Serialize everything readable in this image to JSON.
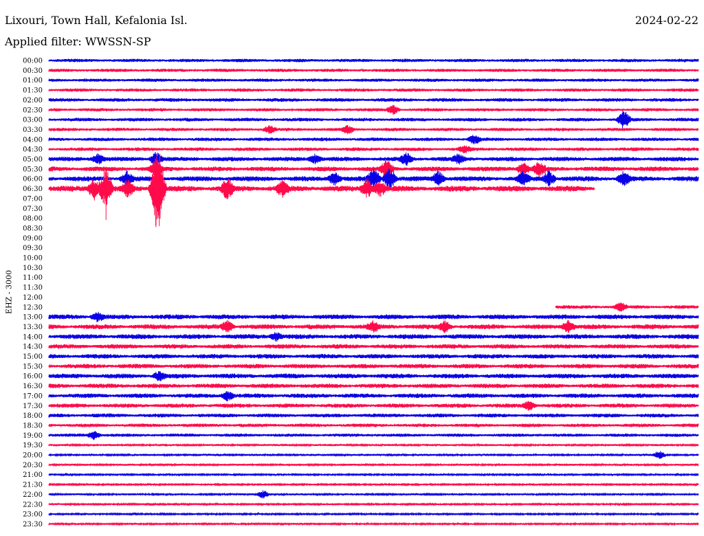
{
  "header": {
    "station": "Lixouri, Town Hall, Kefalonia Isl.",
    "date": "2024-02-22",
    "filter_label": "Applied filter: WWSSN-SP",
    "channel": "EHZ - 3000"
  },
  "colors": {
    "even_trace": "#0a00e6",
    "odd_trace": "#ff0a4a",
    "background": "#ffffff"
  },
  "chart_data": {
    "type": "line",
    "title": "Lixouri, Town Hall, Kefalonia Isl.",
    "ylabel": "EHZ - 3000",
    "tick_labels": [
      "00:00",
      "00:30",
      "01:00",
      "01:30",
      "02:00",
      "02:30",
      "03:00",
      "03:30",
      "04:00",
      "04:30",
      "05:00",
      "05:30",
      "06:00",
      "06:30",
      "07:00",
      "07:30",
      "08:00",
      "08:30",
      "09:00",
      "09:30",
      "10:00",
      "10:30",
      "11:00",
      "11:30",
      "12:00",
      "12:30",
      "13:00",
      "13:30",
      "14:00",
      "14:30",
      "15:00",
      "15:30",
      "16:00",
      "16:30",
      "17:00",
      "17:30",
      "18:00",
      "18:30",
      "19:00",
      "19:30",
      "20:00",
      "20:30",
      "21:00",
      "21:30",
      "22:00",
      "22:30",
      "23:00",
      "23:30"
    ],
    "series": [
      {
        "row": "00:00",
        "data_start": 0.0,
        "data_end": 1.0,
        "noise_level": 0.55,
        "events": []
      },
      {
        "row": "00:30",
        "data_start": 0.0,
        "data_end": 1.0,
        "noise_level": 0.55,
        "events": []
      },
      {
        "row": "01:00",
        "data_start": 0.0,
        "data_end": 1.0,
        "noise_level": 0.55,
        "events": []
      },
      {
        "row": "01:30",
        "data_start": 0.0,
        "data_end": 1.0,
        "noise_level": 0.55,
        "events": []
      },
      {
        "row": "02:00",
        "data_start": 0.0,
        "data_end": 1.0,
        "noise_level": 0.6,
        "events": []
      },
      {
        "row": "02:30",
        "data_start": 0.0,
        "data_end": 1.0,
        "noise_level": 0.55,
        "events": [
          {
            "t": 0.53,
            "amp": 1.4
          }
        ]
      },
      {
        "row": "03:00",
        "data_start": 0.0,
        "data_end": 1.0,
        "noise_level": 0.6,
        "events": [
          {
            "t": 0.885,
            "amp": 2.6
          }
        ]
      },
      {
        "row": "03:30",
        "data_start": 0.0,
        "data_end": 1.0,
        "noise_level": 0.55,
        "events": [
          {
            "t": 0.34,
            "amp": 1.2
          },
          {
            "t": 0.46,
            "amp": 1.2
          }
        ]
      },
      {
        "row": "04:00",
        "data_start": 0.0,
        "data_end": 1.0,
        "noise_level": 0.6,
        "events": [
          {
            "t": 0.655,
            "amp": 1.4
          }
        ]
      },
      {
        "row": "04:30",
        "data_start": 0.0,
        "data_end": 1.0,
        "noise_level": 0.6,
        "events": [
          {
            "t": 0.64,
            "amp": 1.0
          }
        ]
      },
      {
        "row": "05:00",
        "data_start": 0.0,
        "data_end": 1.0,
        "noise_level": 0.75,
        "events": [
          {
            "t": 0.075,
            "amp": 1.8
          },
          {
            "t": 0.165,
            "amp": 2.2
          },
          {
            "t": 0.41,
            "amp": 1.6
          },
          {
            "t": 0.55,
            "amp": 1.6
          },
          {
            "t": 0.63,
            "amp": 1.4
          }
        ]
      },
      {
        "row": "05:30",
        "data_start": 0.0,
        "data_end": 1.0,
        "noise_level": 0.8,
        "events": [
          {
            "t": 0.165,
            "amp": 2.6
          },
          {
            "t": 0.52,
            "amp": 3.0
          },
          {
            "t": 0.73,
            "amp": 2.0
          },
          {
            "t": 0.755,
            "amp": 2.0
          }
        ]
      },
      {
        "row": "06:00",
        "data_start": 0.0,
        "data_end": 1.0,
        "noise_level": 0.85,
        "events": [
          {
            "t": 0.12,
            "amp": 2.0
          },
          {
            "t": 0.44,
            "amp": 2.0
          },
          {
            "t": 0.5,
            "amp": 3.2
          },
          {
            "t": 0.525,
            "amp": 3.4
          },
          {
            "t": 0.6,
            "amp": 2.2
          },
          {
            "t": 0.73,
            "amp": 2.0
          },
          {
            "t": 0.77,
            "amp": 2.4
          },
          {
            "t": 0.885,
            "amp": 2.0
          }
        ]
      },
      {
        "row": "06:30",
        "data_start": 0.0,
        "data_end": 0.84,
        "noise_level": 0.95,
        "events": [
          {
            "t": 0.07,
            "amp": 3.2
          },
          {
            "t": 0.088,
            "amp": 6.5
          },
          {
            "t": 0.122,
            "amp": 2.6
          },
          {
            "t": 0.165,
            "amp": 8.0
          },
          {
            "t": 0.17,
            "amp": 7.8
          },
          {
            "t": 0.275,
            "amp": 3.2
          },
          {
            "t": 0.36,
            "amp": 2.4
          },
          {
            "t": 0.49,
            "amp": 3.0
          },
          {
            "t": 0.51,
            "amp": 2.2
          }
        ]
      },
      {
        "row": "07:00",
        "data_start": null,
        "data_end": null,
        "noise_level": 0,
        "events": []
      },
      {
        "row": "07:30",
        "data_start": null,
        "data_end": null,
        "noise_level": 0,
        "events": []
      },
      {
        "row": "08:00",
        "data_start": null,
        "data_end": null,
        "noise_level": 0,
        "events": []
      },
      {
        "row": "08:30",
        "data_start": null,
        "data_end": null,
        "noise_level": 0,
        "events": []
      },
      {
        "row": "09:00",
        "data_start": null,
        "data_end": null,
        "noise_level": 0,
        "events": []
      },
      {
        "row": "09:30",
        "data_start": null,
        "data_end": null,
        "noise_level": 0,
        "events": []
      },
      {
        "row": "10:00",
        "data_start": null,
        "data_end": null,
        "noise_level": 0,
        "events": []
      },
      {
        "row": "10:30",
        "data_start": null,
        "data_end": null,
        "noise_level": 0,
        "events": []
      },
      {
        "row": "11:00",
        "data_start": null,
        "data_end": null,
        "noise_level": 0,
        "events": []
      },
      {
        "row": "11:30",
        "data_start": null,
        "data_end": null,
        "noise_level": 0,
        "events": []
      },
      {
        "row": "12:00",
        "data_start": null,
        "data_end": null,
        "noise_level": 0,
        "events": []
      },
      {
        "row": "12:30",
        "data_start": 0.78,
        "data_end": 1.0,
        "noise_level": 0.6,
        "events": [
          {
            "t": 0.88,
            "amp": 1.2
          }
        ]
      },
      {
        "row": "13:00",
        "data_start": 0.0,
        "data_end": 1.0,
        "noise_level": 0.8,
        "events": [
          {
            "t": 0.075,
            "amp": 1.4
          }
        ]
      },
      {
        "row": "13:30",
        "data_start": 0.0,
        "data_end": 1.0,
        "noise_level": 0.8,
        "events": [
          {
            "t": 0.275,
            "amp": 1.8
          },
          {
            "t": 0.5,
            "amp": 1.4
          },
          {
            "t": 0.61,
            "amp": 1.8
          },
          {
            "t": 0.8,
            "amp": 1.9
          }
        ]
      },
      {
        "row": "14:00",
        "data_start": 0.0,
        "data_end": 1.0,
        "noise_level": 0.8,
        "events": [
          {
            "t": 0.35,
            "amp": 1.3
          }
        ]
      },
      {
        "row": "14:30",
        "data_start": 0.0,
        "data_end": 1.0,
        "noise_level": 0.75,
        "events": []
      },
      {
        "row": "15:00",
        "data_start": 0.0,
        "data_end": 1.0,
        "noise_level": 0.75,
        "events": []
      },
      {
        "row": "15:30",
        "data_start": 0.0,
        "data_end": 1.0,
        "noise_level": 0.75,
        "events": []
      },
      {
        "row": "16:00",
        "data_start": 0.0,
        "data_end": 1.0,
        "noise_level": 0.8,
        "events": [
          {
            "t": 0.17,
            "amp": 1.4
          }
        ]
      },
      {
        "row": "16:30",
        "data_start": 0.0,
        "data_end": 1.0,
        "noise_level": 0.75,
        "events": []
      },
      {
        "row": "17:00",
        "data_start": 0.0,
        "data_end": 1.0,
        "noise_level": 0.75,
        "events": [
          {
            "t": 0.275,
            "amp": 1.6
          }
        ]
      },
      {
        "row": "17:30",
        "data_start": 0.0,
        "data_end": 1.0,
        "noise_level": 0.7,
        "events": [
          {
            "t": 0.74,
            "amp": 1.6
          }
        ]
      },
      {
        "row": "18:00",
        "data_start": 0.0,
        "data_end": 1.0,
        "noise_level": 0.65,
        "events": []
      },
      {
        "row": "18:30",
        "data_start": 0.0,
        "data_end": 1.0,
        "noise_level": 0.6,
        "events": []
      },
      {
        "row": "19:00",
        "data_start": 0.0,
        "data_end": 1.0,
        "noise_level": 0.55,
        "events": [
          {
            "t": 0.07,
            "amp": 1.3
          }
        ]
      },
      {
        "row": "19:30",
        "data_start": 0.0,
        "data_end": 1.0,
        "noise_level": 0.35,
        "events": []
      },
      {
        "row": "20:00",
        "data_start": 0.0,
        "data_end": 1.0,
        "noise_level": 0.35,
        "events": [
          {
            "t": 0.94,
            "amp": 1.2
          }
        ]
      },
      {
        "row": "20:30",
        "data_start": 0.0,
        "data_end": 1.0,
        "noise_level": 0.35,
        "events": []
      },
      {
        "row": "21:00",
        "data_start": 0.0,
        "data_end": 1.0,
        "noise_level": 0.3,
        "events": []
      },
      {
        "row": "21:30",
        "data_start": 0.0,
        "data_end": 1.0,
        "noise_level": 0.3,
        "events": []
      },
      {
        "row": "22:00",
        "data_start": 0.0,
        "data_end": 1.0,
        "noise_level": 0.35,
        "events": [
          {
            "t": 0.33,
            "amp": 1.2
          }
        ]
      },
      {
        "row": "22:30",
        "data_start": 0.0,
        "data_end": 1.0,
        "noise_level": 0.3,
        "events": []
      },
      {
        "row": "23:00",
        "data_start": 0.0,
        "data_end": 1.0,
        "noise_level": 0.3,
        "events": []
      },
      {
        "row": "23:30",
        "data_start": 0.0,
        "data_end": 1.0,
        "noise_level": 0.3,
        "events": []
      }
    ]
  }
}
